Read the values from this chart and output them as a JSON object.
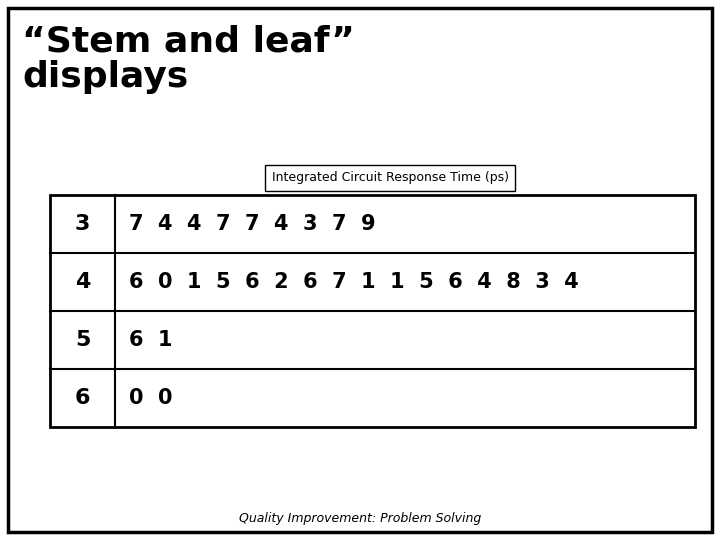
{
  "title_line1": "“Stem and leaf”",
  "title_line2": "displays",
  "table_title": "Integrated Circuit Response Time (ps)",
  "stems": [
    "3",
    "4",
    "5",
    "6"
  ],
  "leaves": [
    "7  4  4  7  7  4  3  7  9",
    "6  0  1  5  6  2  6  7  1  1  5  6  4  8  3  4",
    "6  1",
    "0  0"
  ],
  "footer": "Quality Improvement: Problem Solving",
  "bg_color": "#ffffff",
  "border_color": "#000000",
  "text_color": "#000000",
  "title_fontsize": 26,
  "table_title_fontsize": 9,
  "stem_fontsize": 16,
  "leaf_fontsize": 15,
  "footer_fontsize": 9,
  "fig_width": 7.2,
  "fig_height": 5.4,
  "dpi": 100
}
